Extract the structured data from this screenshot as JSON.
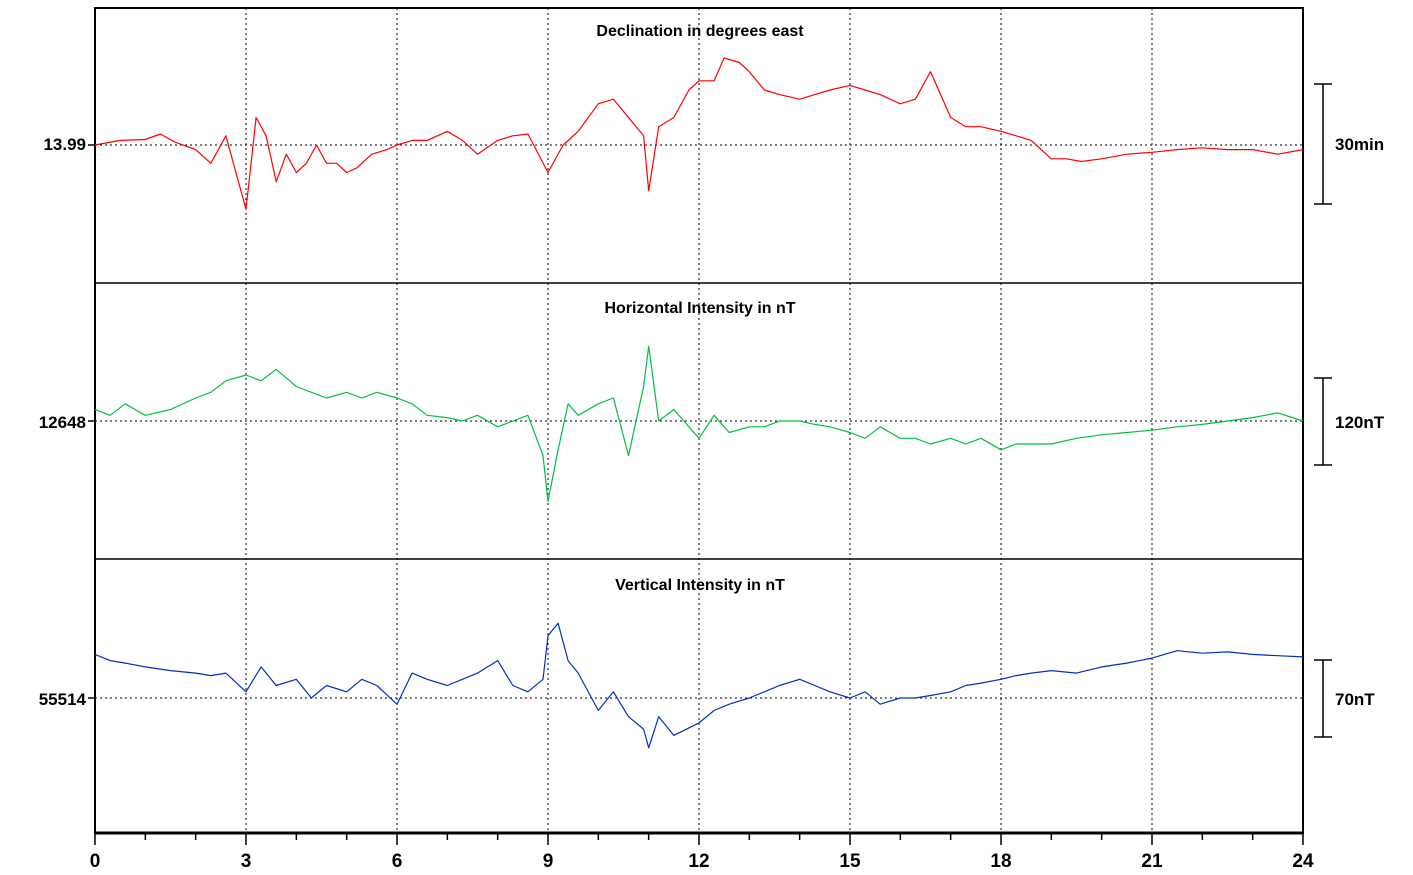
{
  "chart_data": {
    "type": "line",
    "panels": [
      {
        "title": "Declination in degrees east",
        "baseline_label": "13.99",
        "scale_label": "30min",
        "color": "#ff0000",
        "x": [
          0,
          0.5,
          1,
          1.3,
          1.6,
          2,
          2.3,
          2.6,
          2.8,
          3,
          3.2,
          3.4,
          3.6,
          3.8,
          4,
          4.2,
          4.4,
          4.6,
          4.8,
          5,
          5.2,
          5.5,
          5.8,
          6,
          6.3,
          6.6,
          7,
          7.3,
          7.6,
          8,
          8.3,
          8.6,
          9,
          9.3,
          9.6,
          10,
          10.3,
          10.6,
          10.9,
          11,
          11.2,
          11.5,
          11.8,
          12,
          12.3,
          12.5,
          12.8,
          13,
          13.3,
          13.6,
          14,
          14.3,
          14.6,
          15,
          15.3,
          15.6,
          16,
          16.3,
          16.6,
          17,
          17.3,
          17.6,
          18,
          18.3,
          18.6,
          19,
          19.3,
          19.6,
          20,
          20.5,
          21,
          21.5,
          22,
          22.5,
          23,
          23.5,
          24
        ],
        "y": [
          0,
          0.5,
          0.6,
          1.2,
          0.3,
          -0.5,
          -2,
          1,
          -3,
          -7,
          3,
          1,
          -4,
          -1,
          -3,
          -2,
          0,
          -2,
          -2,
          -3,
          -2.5,
          -1,
          -0.5,
          0,
          0.5,
          0.5,
          1.5,
          0.5,
          -1,
          0.5,
          1,
          1.2,
          -3,
          0,
          1.5,
          4.5,
          5,
          3,
          1,
          -5,
          2,
          3,
          6,
          7,
          7,
          9.5,
          9,
          8,
          6,
          5.5,
          5,
          5.5,
          6,
          6.5,
          6,
          5.5,
          4.5,
          5,
          8,
          3,
          2,
          2,
          1.5,
          1,
          0.5,
          -1.5,
          -1.5,
          -1.8,
          -1.5,
          -1,
          -0.8,
          -0.5,
          -0.3,
          -0.5,
          -0.5,
          -1,
          -0.5
        ],
        "y_range": [
          -15,
          15
        ]
      },
      {
        "title": "Horizontal Intensity in nT",
        "baseline_label": "12648",
        "scale_label": "120nT",
        "color": "#00c040",
        "x": [
          0,
          0.3,
          0.6,
          1,
          1.5,
          2,
          2.3,
          2.6,
          3,
          3.3,
          3.6,
          4,
          4.3,
          4.6,
          5,
          5.3,
          5.6,
          6,
          6.3,
          6.6,
          7,
          7.3,
          7.6,
          8,
          8.3,
          8.6,
          8.9,
          9,
          9.2,
          9.4,
          9.6,
          10,
          10.3,
          10.6,
          10.9,
          11,
          11.2,
          11.5,
          12,
          12.3,
          12.6,
          13,
          13.3,
          13.6,
          14,
          14.3,
          14.6,
          15,
          15.3,
          15.6,
          16,
          16.3,
          16.6,
          17,
          17.3,
          17.6,
          18,
          18.3,
          18.6,
          19,
          19.5,
          20,
          20.5,
          21,
          21.5,
          22,
          22.5,
          23,
          23.5,
          24
        ],
        "y": [
          10,
          5,
          15,
          5,
          10,
          20,
          25,
          35,
          40,
          35,
          45,
          30,
          25,
          20,
          25,
          20,
          25,
          20,
          15,
          5,
          3,
          0,
          5,
          -5,
          0,
          5,
          -30,
          -70,
          -25,
          15,
          5,
          15,
          20,
          -30,
          30,
          65,
          0,
          10,
          -15,
          5,
          -10,
          -5,
          -5,
          0,
          0,
          -3,
          -5,
          -10,
          -15,
          -5,
          -15,
          -15,
          -20,
          -15,
          -20,
          -15,
          -25,
          -20,
          -20,
          -20,
          -15,
          -12,
          -10,
          -8,
          -5,
          -3,
          0,
          3,
          7,
          0
        ],
        "y_range": [
          -120,
          120
        ]
      },
      {
        "title": "Vertical Intensity in nT",
        "baseline_label": "55514",
        "scale_label": "70nT",
        "color": "#0030c0",
        "x": [
          0,
          0.3,
          0.6,
          1,
          1.5,
          2,
          2.3,
          2.6,
          3,
          3.3,
          3.6,
          4,
          4.3,
          4.6,
          5,
          5.3,
          5.6,
          6,
          6.3,
          6.6,
          7,
          7.3,
          7.6,
          8,
          8.3,
          8.6,
          8.9,
          9,
          9.2,
          9.4,
          9.6,
          10,
          10.3,
          10.6,
          10.9,
          11,
          11.2,
          11.5,
          12,
          12.3,
          12.6,
          13,
          13.3,
          13.6,
          14,
          14.3,
          14.6,
          15,
          15.3,
          15.6,
          16,
          16.3,
          16.6,
          17,
          17.3,
          17.6,
          18,
          18.3,
          18.6,
          19,
          19.5,
          20,
          20.5,
          21,
          21.5,
          22,
          22.5,
          23,
          23.5,
          24
        ],
        "y": [
          35,
          30,
          28,
          25,
          22,
          20,
          18,
          20,
          5,
          25,
          10,
          15,
          0,
          10,
          5,
          15,
          10,
          -5,
          20,
          15,
          10,
          15,
          20,
          30,
          10,
          5,
          15,
          50,
          60,
          30,
          20,
          -10,
          5,
          -15,
          -25,
          -40,
          -15,
          -30,
          -20,
          -10,
          -5,
          0,
          5,
          10,
          15,
          10,
          5,
          0,
          5,
          -5,
          0,
          0,
          2,
          5,
          10,
          12,
          15,
          18,
          20,
          22,
          20,
          25,
          28,
          32,
          38,
          36,
          37,
          35,
          34,
          33
        ],
        "y_range": [
          -110,
          110
        ]
      }
    ],
    "xticks": [
      "0",
      "3",
      "6",
      "9",
      "12",
      "15",
      "18",
      "21",
      "24"
    ],
    "xlim": [
      0,
      24
    ],
    "grid": true
  }
}
